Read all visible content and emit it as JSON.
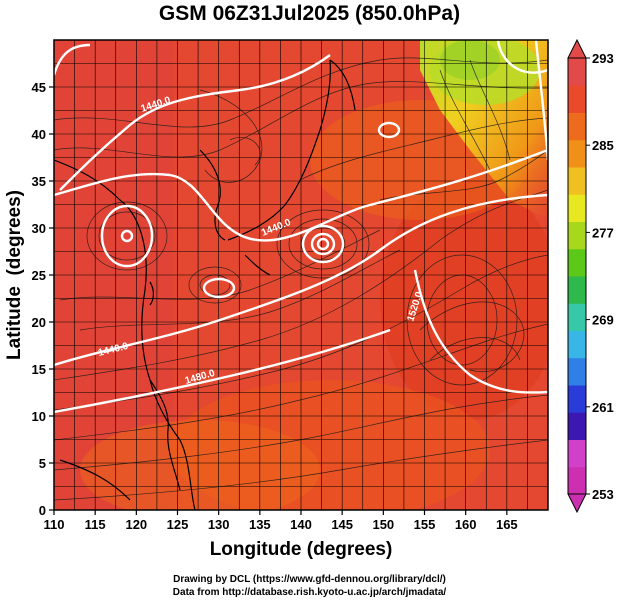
{
  "title": "GSM 06Z31Jul2025 (850.0hPa)",
  "axes": {
    "xlabel": "Longitude (degrees)",
    "ylabel": "Latitude  (degrees)",
    "xticks": [
      110,
      115,
      120,
      125,
      130,
      135,
      140,
      145,
      150,
      155,
      160,
      165
    ],
    "yticks": [
      0,
      5,
      10,
      15,
      20,
      25,
      30,
      35,
      40,
      45
    ],
    "xlim": [
      110,
      170
    ],
    "ylim": [
      0,
      50
    ]
  },
  "colorbar": {
    "labels": [
      "293",
      "285",
      "277",
      "269",
      "261",
      "253"
    ],
    "min": 253,
    "max": 293,
    "colors": [
      "#cc2fb0",
      "#d040c8",
      "#3c18b0",
      "#2a3cd8",
      "#2f7fe6",
      "#38b6e6",
      "#37c8a8",
      "#2fb84c",
      "#5cc818",
      "#a8d81c",
      "#e8e820",
      "#f0c020",
      "#f09018",
      "#ee6a1c",
      "#e84a2a",
      "#e24a4a"
    ]
  },
  "contours": {
    "labels": [
      "1440.0",
      "1440.0",
      "1440.0",
      "1520.0",
      "1480.0"
    ]
  },
  "credits": {
    "line1": "Drawing by DCL (https://www.gfd-dennou.org/library/dcl/)",
    "line2": "Data from http://database.rish.kyoto-u.ac.jp/arch/jmadata/"
  }
}
